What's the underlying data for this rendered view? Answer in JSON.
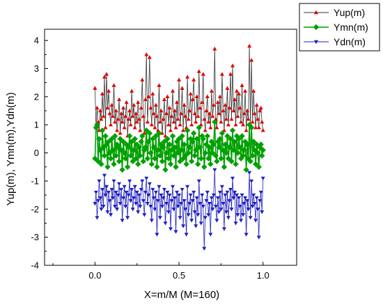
{
  "chart_data": {
    "type": "line",
    "xlabel": "X=m/M (M=160)",
    "ylabel": "Yup(m), Ymn(m),Ydn(m)",
    "xlim": [
      -0.3,
      1.2
    ],
    "ylim": [
      -4,
      4.4
    ],
    "xticks": [
      0.0,
      0.5,
      1.0
    ],
    "xtick_labels": [
      "0.0",
      "0.5",
      "1.0"
    ],
    "yticks": [
      -4,
      -3,
      -2,
      -1,
      0,
      1,
      2,
      3,
      4
    ],
    "ytick_labels": [
      "-4",
      "-3",
      "-2",
      "-1",
      "0",
      "1",
      "2",
      "3",
      "4"
    ],
    "grid": false,
    "legend_position": "top-right",
    "x": [
      0.0,
      0.00625,
      0.0125,
      0.01875,
      0.025,
      0.03125,
      0.0375,
      0.04375,
      0.05,
      0.05625,
      0.0625,
      0.06875,
      0.075,
      0.08125,
      0.0875,
      0.09375,
      0.1,
      0.10625,
      0.1125,
      0.11875,
      0.125,
      0.13125,
      0.1375,
      0.14375,
      0.15,
      0.15625,
      0.1625,
      0.16875,
      0.175,
      0.18125,
      0.1875,
      0.19375,
      0.2,
      0.20625,
      0.2125,
      0.21875,
      0.225,
      0.23125,
      0.2375,
      0.24375,
      0.25,
      0.25625,
      0.2625,
      0.26875,
      0.275,
      0.28125,
      0.2875,
      0.29375,
      0.3,
      0.30625,
      0.3125,
      0.31875,
      0.325,
      0.33125,
      0.3375,
      0.34375,
      0.35,
      0.35625,
      0.3625,
      0.36875,
      0.375,
      0.38125,
      0.3875,
      0.39375,
      0.4,
      0.40625,
      0.4125,
      0.41875,
      0.425,
      0.43125,
      0.4375,
      0.44375,
      0.45,
      0.45625,
      0.4625,
      0.46875,
      0.475,
      0.48125,
      0.4875,
      0.49375,
      0.5,
      0.50625,
      0.5125,
      0.51875,
      0.525,
      0.53125,
      0.5375,
      0.54375,
      0.55,
      0.55625,
      0.5625,
      0.56875,
      0.575,
      0.58125,
      0.5875,
      0.59375,
      0.6,
      0.60625,
      0.6125,
      0.61875,
      0.625,
      0.63125,
      0.6375,
      0.64375,
      0.65,
      0.65625,
      0.6625,
      0.66875,
      0.675,
      0.68125,
      0.6875,
      0.69375,
      0.7,
      0.70625,
      0.7125,
      0.71875,
      0.725,
      0.73125,
      0.7375,
      0.74375,
      0.75,
      0.75625,
      0.7625,
      0.76875,
      0.775,
      0.78125,
      0.7875,
      0.79375,
      0.8,
      0.80625,
      0.8125,
      0.81875,
      0.825,
      0.83125,
      0.8375,
      0.84375,
      0.85,
      0.85625,
      0.8625,
      0.86875,
      0.875,
      0.88125,
      0.8875,
      0.89375,
      0.9,
      0.90625,
      0.9125,
      0.91875,
      0.925,
      0.93125,
      0.9375,
      0.94375,
      0.95,
      0.95625,
      0.9625,
      0.96875,
      0.975,
      0.98125,
      0.9875,
      0.99375,
      1.0
    ],
    "series": [
      {
        "name": "Yup(m)",
        "color": "#e00000",
        "marker": "triangle-up",
        "values": [
          2.3,
          0.9,
          1.6,
          1.1,
          0.8,
          1.5,
          1.2,
          2.1,
          1.3,
          2.7,
          0.9,
          2.8,
          1.6,
          2.2,
          1.4,
          1.0,
          1.7,
          1.3,
          2.4,
          1.1,
          1.5,
          0.8,
          1.2,
          1.9,
          0.7,
          1.4,
          1.1,
          1.6,
          0.9,
          1.3,
          1.8,
          0.6,
          1.2,
          1.5,
          1.0,
          2.2,
          1.3,
          1.7,
          0.9,
          1.4,
          1.1,
          1.8,
          1.2,
          0.8,
          1.6,
          2.6,
          1.3,
          0.7,
          1.9,
          3.5,
          1.1,
          2.0,
          3.4,
          1.6,
          1.0,
          2.1,
          1.4,
          0.9,
          1.7,
          1.3,
          0.8,
          2.4,
          1.1,
          1.5,
          0.7,
          1.2,
          1.9,
          0.6,
          1.4,
          2.0,
          1.0,
          1.6,
          0.8,
          1.3,
          2.2,
          1.1,
          1.5,
          0.9,
          1.8,
          1.2,
          2.6,
          1.0,
          1.4,
          2.3,
          0.8,
          1.7,
          1.3,
          0.9,
          2.7,
          1.2,
          1.5,
          2.1,
          1.0,
          1.9,
          2.6,
          1.4,
          1.1,
          2.0,
          1.3,
          2.9,
          1.6,
          1.0,
          1.8,
          2.8,
          1.2,
          0.8,
          1.5,
          2.0,
          1.1,
          1.4,
          0.9,
          2.2,
          1.3,
          1.7,
          3.7,
          1.2,
          0.9,
          1.8,
          1.4,
          2.0,
          1.1,
          2.8,
          1.5,
          0.8,
          1.7,
          1.2,
          2.3,
          1.0,
          1.6,
          2.8,
          1.2,
          3.1,
          1.5,
          1.9,
          1.0,
          2.2,
          1.3,
          2.1,
          1.6,
          1.1,
          2.4,
          1.0,
          1.4,
          2.2,
          0.8,
          1.5,
          1.2,
          3.8,
          1.0,
          3.3,
          1.1,
          2.2,
          1.4,
          0.9,
          1.7,
          1.2,
          0.9,
          1.5,
          1.6,
          1.1,
          0.8
        ]
      },
      {
        "name": "Ymn(m)",
        "color": "#00a000",
        "marker": "diamond",
        "values": [
          -0.2,
          0.9,
          1.0,
          -0.3,
          0.5,
          0.1,
          -0.4,
          0.8,
          0.2,
          -0.1,
          0.6,
          0.3,
          -0.5,
          0.4,
          0.0,
          -0.2,
          0.5,
          0.1,
          -0.4,
          0.6,
          -0.1,
          0.3,
          0.2,
          -0.3,
          0.5,
          0.1,
          -0.6,
          0.4,
          0.0,
          -0.2,
          0.3,
          -0.5,
          0.2,
          0.6,
          -0.1,
          0.4,
          -0.3,
          0.1,
          0.5,
          -0.2,
          0.3,
          -0.4,
          0.2,
          -0.1,
          0.4,
          0.6,
          -0.3,
          0.1,
          0.2,
          0.8,
          -0.2,
          0.4,
          0.7,
          0.0,
          -0.4,
          0.5,
          0.2,
          -0.2,
          0.6,
          -0.5,
          0.1,
          0.7,
          -0.1,
          0.3,
          -0.3,
          0.2,
          0.4,
          -0.6,
          0.0,
          0.5,
          -0.2,
          0.3,
          -0.4,
          0.1,
          0.6,
          -0.1,
          0.2,
          -0.5,
          0.4,
          0.0,
          0.5,
          -0.3,
          0.1,
          0.6,
          -0.2,
          0.3,
          -0.1,
          -0.4,
          0.8,
          0.0,
          0.2,
          0.5,
          -0.3,
          0.4,
          0.7,
          -0.1,
          0.1,
          0.5,
          -0.4,
          0.9,
          0.2,
          -0.2,
          0.6,
          0.5,
          -0.5,
          0.0,
          0.3,
          0.6,
          -0.2,
          0.2,
          -0.4,
          0.4,
          0.0,
          0.3,
          1.1,
          -0.1,
          -0.3,
          0.4,
          0.2,
          0.5,
          -0.2,
          0.7,
          0.1,
          -0.5,
          0.3,
          0.0,
          0.6,
          -0.2,
          0.2,
          0.5,
          -0.3,
          0.8,
          0.1,
          0.4,
          -0.4,
          0.6,
          0.0,
          0.5,
          0.2,
          -0.2,
          0.6,
          -0.1,
          0.1,
          0.4,
          -0.6,
          0.3,
          -0.2,
          1.0,
          -0.3,
          0.9,
          -0.1,
          0.4,
          0.1,
          -0.4,
          0.3,
          0.0,
          -0.5,
          0.2,
          0.3,
          -0.1,
          0.1
        ]
      },
      {
        "name": "Ydn(m)",
        "color": "#2020c0",
        "marker": "triangle-down",
        "values": [
          -1.8,
          -1.4,
          -2.3,
          -1.7,
          -1.0,
          -1.6,
          -2.0,
          -1.3,
          -1.9,
          -0.8,
          -1.5,
          -1.2,
          -2.1,
          -1.4,
          -1.7,
          -2.2,
          -1.3,
          -1.6,
          -1.0,
          -1.9,
          -1.4,
          -2.0,
          -1.5,
          -1.1,
          -1.8,
          -1.3,
          -2.4,
          -1.6,
          -1.2,
          -1.9,
          -1.4,
          -2.3,
          -1.5,
          -1.0,
          -1.7,
          -1.3,
          -2.0,
          -1.6,
          -1.2,
          -1.8,
          -1.4,
          -2.1,
          -1.5,
          -1.9,
          -1.3,
          -1.0,
          -1.7,
          -2.2,
          -1.4,
          -0.9,
          -1.8,
          -1.5,
          -1.1,
          -1.9,
          -2.4,
          -1.3,
          -1.6,
          -2.0,
          -1.4,
          -2.9,
          -1.7,
          -1.2,
          -2.3,
          -1.5,
          -1.9,
          -1.6,
          -1.3,
          -2.5,
          -1.8,
          -1.4,
          -2.1,
          -1.5,
          -2.7,
          -1.7,
          -1.2,
          -2.0,
          -1.6,
          -2.8,
          -1.4,
          -1.9,
          -1.5,
          -2.3,
          -1.8,
          -1.3,
          -2.6,
          -1.7,
          -2.0,
          -2.9,
          -1.2,
          -2.2,
          -1.8,
          -1.5,
          -2.4,
          -1.7,
          -1.4,
          -2.1,
          -2.6,
          -1.6,
          -2.2,
          -1.0,
          -1.8,
          -2.5,
          -1.5,
          -1.9,
          -3.4,
          -2.3,
          -1.7,
          -1.4,
          -2.2,
          -1.8,
          -2.9,
          -1.6,
          -2.0,
          -1.5,
          -0.6,
          -1.9,
          -2.4,
          -1.6,
          -2.1,
          -1.4,
          -2.0,
          -1.2,
          -1.8,
          -2.7,
          -1.5,
          -2.1,
          -1.4,
          -2.3,
          -1.7,
          -1.3,
          -2.0,
          -0.9,
          -1.6,
          -1.4,
          -2.5,
          -1.5,
          -2.2,
          -1.6,
          -1.9,
          -2.4,
          -1.5,
          -2.2,
          -1.8,
          -1.6,
          -2.9,
          -1.7,
          -2.0,
          -0.7,
          -2.3,
          -1.0,
          -1.9,
          -1.5,
          -1.8,
          -2.4,
          -1.6,
          -2.0,
          -3.0,
          -1.7,
          -1.4,
          -2.1,
          -0.9
        ]
      }
    ]
  }
}
